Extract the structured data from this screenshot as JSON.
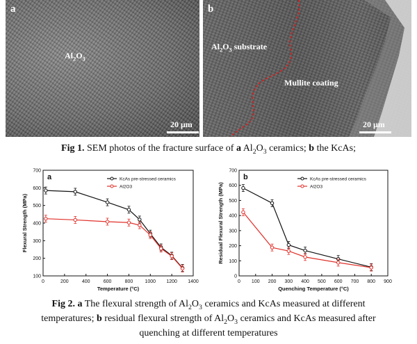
{
  "sem_a": {
    "letter": "a",
    "label": "Al",
    "label_sub": "2",
    "label_rest": "O",
    "label_sub2": "3",
    "scale": "20 μm"
  },
  "sem_b": {
    "letter": "b",
    "substrate_label": "Al",
    "substrate_sub": "2",
    "substrate_mid": "O",
    "substrate_sub2": "3",
    "substrate_rest": " substrate",
    "coating_label": "Mullite coating",
    "scale": "20 μm"
  },
  "fig1_caption": {
    "bold": "Fig 1.",
    "text1": "  SEM photos of the fracture surface of ",
    "bold_a": "a",
    "text2": " Al",
    "sub1": "2",
    "text3": "O",
    "sub2": "3",
    "text4": " ceramics; ",
    "bold_b": "b",
    "text5": " the KcAs;"
  },
  "fig2_caption": {
    "bold": "Fig 2.",
    "bold_a": "a",
    "text1": " The flexural strength of Al",
    "sub1": "2",
    "text2": "O",
    "sub2": "3",
    "text3": " ceramics and KcAs measured at different",
    "line2a": "temperatures; ",
    "bold_b": "b",
    "line2b": " residual flexural strength of Al",
    "sub3": "2",
    "line2c": "O",
    "sub4": "3",
    "line2d": " ceramics and KcAs measured after",
    "line3": "quenching at different temperatures"
  },
  "chart_data": [
    {
      "panel": "a",
      "type": "line",
      "xlabel": "Temperature (°C)",
      "ylabel": "Flexural Strength (MPa)",
      "xlim": [
        0,
        1400
      ],
      "ylim": [
        100,
        700
      ],
      "xticks": [
        0,
        200,
        400,
        600,
        800,
        1000,
        1200,
        1400
      ],
      "yticks": [
        100,
        200,
        300,
        400,
        500,
        600,
        700
      ],
      "legend_position": "top-right",
      "series": [
        {
          "name": "KcAs  pre-stressed ceramics",
          "color": "#111111",
          "x": [
            25,
            300,
            600,
            800,
            900,
            1000,
            1100,
            1200,
            1300
          ],
          "y": [
            585,
            578,
            518,
            476,
            420,
            340,
            262,
            215,
            145
          ]
        },
        {
          "name": "Al2O3",
          "color": "#e0302a",
          "x": [
            25,
            300,
            600,
            800,
            900,
            1000,
            1100,
            1200,
            1300
          ],
          "y": [
            425,
            418,
            408,
            403,
            388,
            332,
            255,
            212,
            142
          ]
        }
      ]
    },
    {
      "panel": "b",
      "type": "line",
      "xlabel": "Quenching Temperature (°C)",
      "ylabel": "Residual Flexural Strength (MPa)",
      "xlim": [
        0,
        900
      ],
      "ylim": [
        0,
        700
      ],
      "xticks": [
        0,
        100,
        200,
        300,
        400,
        500,
        600,
        700,
        800,
        900
      ],
      "yticks": [
        0,
        100,
        200,
        300,
        400,
        500,
        600,
        700
      ],
      "legend_position": "top-right",
      "series": [
        {
          "name": "KcAs pre-stressed ceramics",
          "color": "#111111",
          "x": [
            25,
            200,
            300,
            400,
            600,
            800
          ],
          "y": [
            582,
            482,
            205,
            168,
            112,
            58
          ]
        },
        {
          "name": "Al2O3",
          "color": "#e0302a",
          "x": [
            25,
            200,
            300,
            400,
            600,
            800
          ],
          "y": [
            422,
            188,
            165,
            125,
            88,
            55
          ]
        }
      ]
    }
  ]
}
